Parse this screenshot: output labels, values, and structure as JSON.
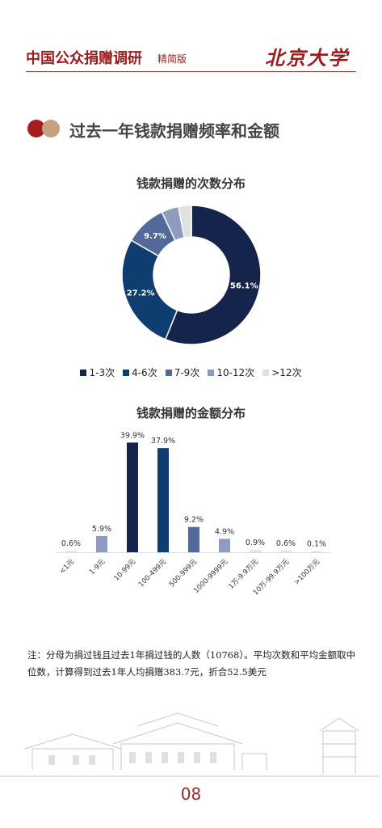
{
  "header": {
    "title": "中国公众捐赠调研",
    "subtitle": "精简版",
    "logo": "北京大学"
  },
  "section": {
    "title": "过去一年钱款捐赠频率和金额"
  },
  "colors": {
    "brand_red": "#9b1c1c",
    "accent_tan": "#c8a080"
  },
  "chart_data": [
    {
      "type": "pie",
      "title": "钱款捐赠的次数分布",
      "categories": [
        "1-3次",
        "4-6次",
        "7-9次",
        "10-12次",
        ">12次"
      ],
      "values": [
        56.1,
        27.2,
        9.7,
        4.0,
        3.0
      ],
      "labels": [
        "56.1%",
        "27.2%",
        "9.7%",
        "",
        ""
      ],
      "colors": [
        "#14244a",
        "#0f3d70",
        "#52699a",
        "#8f9cc0",
        "#e0e0e0"
      ],
      "legend": "bottom"
    },
    {
      "type": "bar",
      "title": "钱款捐赠的金额分布",
      "categories": [
        "<1元",
        "1-9元",
        "10-99元",
        "100-499元",
        "500-999元",
        "1000-9999元",
        "1万-9.9万元",
        "10万-99.9万元",
        ">100万元"
      ],
      "values": [
        0.6,
        5.9,
        39.9,
        37.9,
        9.2,
        4.9,
        0.9,
        0.6,
        0.1
      ],
      "labels": [
        "0.6%",
        "5.9%",
        "39.9%",
        "37.9%",
        "9.2%",
        "4.9%",
        "0.9%",
        "0.6%",
        "0.1%"
      ],
      "colors": [
        "#e6e6e6",
        "#8f9cc0",
        "#14244a",
        "#0f3d70",
        "#52699a",
        "#8f9cc0",
        "#e6e6e6",
        "#e6e6e6",
        "#e6e6e6"
      ]
    }
  ],
  "note": "注：分母为捐过钱且过去1年捐过钱的人数（10768）。平均次数和平均金额取中位数，计算得到过去1年人均捐赠383.7元，折合52.5美元",
  "page_number": "08"
}
